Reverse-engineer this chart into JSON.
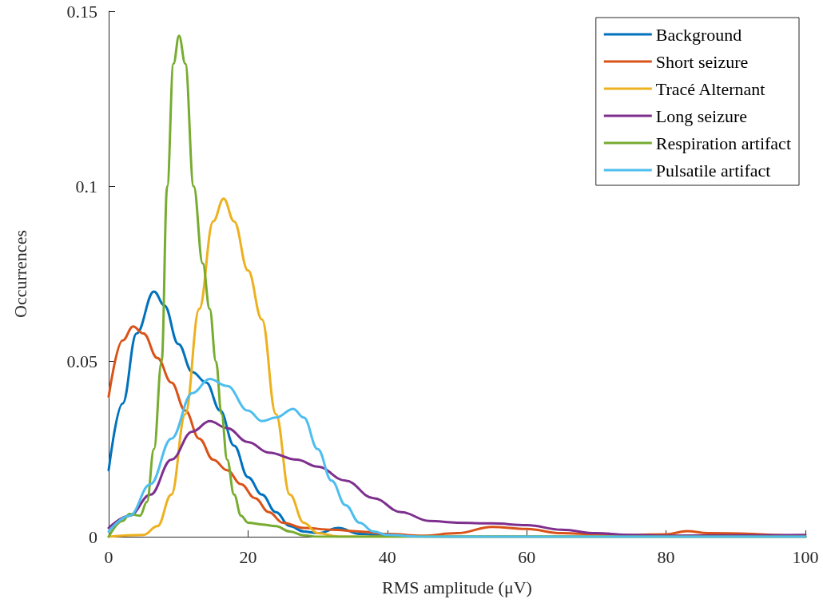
{
  "chart_data": {
    "type": "line",
    "xlabel": "RMS amplitude (μV)",
    "ylabel": "Occurrences",
    "xlim": [
      0,
      100
    ],
    "xticks": [
      0,
      20,
      40,
      60,
      80,
      100
    ],
    "ylim": [
      0,
      0.15
    ],
    "yticks": [
      0,
      0.05,
      0.1,
      0.15
    ],
    "grid": false,
    "legend": "top right",
    "marker": "none",
    "line_style": "solid",
    "series": [
      {
        "name": "Background",
        "color": "#0072bd",
        "x": [
          0,
          2,
          4,
          6.5,
          8,
          10,
          12,
          14,
          16,
          18,
          20,
          22,
          24,
          26,
          28,
          30,
          33,
          36,
          40,
          50,
          100
        ],
        "values": [
          0.019,
          0.038,
          0.058,
          0.07,
          0.066,
          0.055,
          0.047,
          0.044,
          0.036,
          0.026,
          0.017,
          0.012,
          0.007,
          0.003,
          0.0015,
          0.001,
          0.0025,
          0.0008,
          0.0002,
          0,
          0
        ]
      },
      {
        "name": "Short seizure",
        "color": "#d95319",
        "x": [
          0,
          2,
          3.5,
          5,
          7,
          9,
          11,
          13,
          15,
          17,
          19,
          21,
          23,
          25,
          28,
          32,
          36,
          40,
          45,
          50,
          55,
          60,
          65,
          70,
          75,
          80,
          83,
          86,
          100
        ],
        "values": [
          0.04,
          0.056,
          0.06,
          0.058,
          0.051,
          0.044,
          0.036,
          0.028,
          0.022,
          0.019,
          0.015,
          0.011,
          0.007,
          0.004,
          0.0025,
          0.002,
          0.0015,
          0.0008,
          0.0003,
          0.001,
          0.0028,
          0.0022,
          0.001,
          0.0007,
          0.0005,
          0.0007,
          0.0016,
          0.001,
          0
        ]
      },
      {
        "name": "Tracé Alternant",
        "color": "#edb120",
        "x": [
          0,
          5,
          7,
          9,
          11,
          13,
          15,
          16.5,
          18,
          20,
          22,
          24,
          26,
          28,
          30,
          33,
          100
        ],
        "values": [
          0,
          0.0005,
          0.003,
          0.012,
          0.035,
          0.065,
          0.09,
          0.0965,
          0.09,
          0.076,
          0.062,
          0.035,
          0.012,
          0.004,
          0.001,
          0,
          0
        ]
      },
      {
        "name": "Long seizure",
        "color": "#7e2f8e",
        "x": [
          0,
          3,
          6,
          9,
          12,
          14.5,
          17,
          20,
          23,
          27,
          30,
          34,
          38,
          42,
          46,
          50,
          55,
          60,
          65,
          70,
          75,
          80,
          90,
          100
        ],
        "values": [
          0.0025,
          0.006,
          0.012,
          0.022,
          0.03,
          0.033,
          0.031,
          0.027,
          0.024,
          0.022,
          0.02,
          0.016,
          0.011,
          0.007,
          0.0045,
          0.004,
          0.0038,
          0.0033,
          0.002,
          0.001,
          0.0005,
          0.0003,
          0.0004,
          0.0005
        ]
      },
      {
        "name": "Respiration artifact",
        "color": "#77ac30",
        "x": [
          0,
          2,
          3,
          4.5,
          5.5,
          6.5,
          7.6,
          8.4,
          9.3,
          10.1,
          11,
          12.2,
          13.5,
          14.5,
          15.4,
          16.2,
          17,
          18,
          19,
          20,
          22,
          24,
          26,
          28,
          30,
          100
        ],
        "values": [
          0,
          0.0045,
          0.0065,
          0.006,
          0.01,
          0.025,
          0.05,
          0.1,
          0.135,
          0.143,
          0.135,
          0.1,
          0.078,
          0.065,
          0.05,
          0.035,
          0.022,
          0.012,
          0.006,
          0.004,
          0.0035,
          0.003,
          0.0015,
          0.0004,
          0,
          0
        ]
      },
      {
        "name": "Pulsatile artifact",
        "color": "#4dbeee",
        "x": [
          0,
          3,
          6,
          9,
          12,
          14.5,
          17,
          20,
          22,
          24,
          26.5,
          28,
          30,
          32,
          34,
          36,
          38,
          40,
          45,
          100
        ],
        "values": [
          0.0015,
          0.006,
          0.015,
          0.028,
          0.041,
          0.045,
          0.043,
          0.036,
          0.033,
          0.034,
          0.0365,
          0.034,
          0.025,
          0.016,
          0.009,
          0.004,
          0.0015,
          0.0005,
          0,
          0
        ]
      }
    ]
  }
}
